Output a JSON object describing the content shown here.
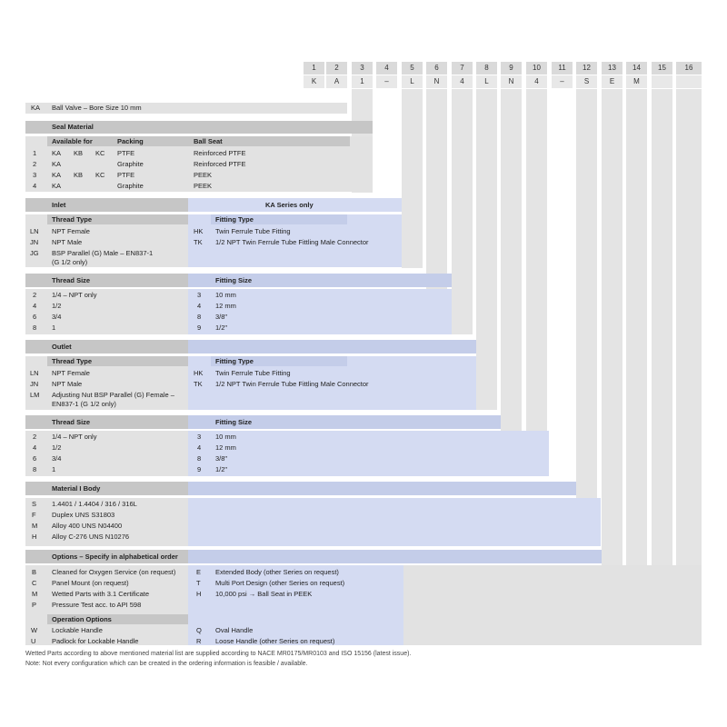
{
  "columns": {
    "numbers": [
      "1",
      "2",
      "3",
      "4",
      "5",
      "6",
      "7",
      "8",
      "9",
      "10",
      "11",
      "12",
      "13",
      "14",
      "15",
      "16"
    ],
    "codes": [
      "K",
      "A",
      "1",
      "–",
      "L",
      "N",
      "4",
      "L",
      "N",
      "4",
      "–",
      "S",
      "E",
      "M",
      "",
      ""
    ]
  },
  "body": {
    "code": "KA",
    "label": "Ball Valve – Bore Size 10 mm"
  },
  "seal": {
    "title": "Seal Material",
    "headers": {
      "available_for": "Available for",
      "packing": "Packing",
      "ball_seat": "Ball Seat"
    },
    "rows": [
      {
        "code": "1",
        "a": "KA",
        "b": "KB",
        "c": "KC",
        "packing": "PTFE",
        "seat": "Reinforced PTFE"
      },
      {
        "code": "2",
        "a": "KA",
        "b": "",
        "c": "",
        "packing": "Graphite",
        "seat": "Reinforced PTFE"
      },
      {
        "code": "3",
        "a": "KA",
        "b": "KB",
        "c": "KC",
        "packing": "PTFE",
        "seat": "PEEK"
      },
      {
        "code": "4",
        "a": "KA",
        "b": "",
        "c": "",
        "packing": "Graphite",
        "seat": "PEEK"
      }
    ]
  },
  "inlet": {
    "title": "Inlet",
    "ka_only": "KA Series only",
    "thread_type": "Thread Type",
    "fitting_type": "Fitting Type",
    "types": [
      {
        "code": "LN",
        "label": "NPT Female"
      },
      {
        "code": "JN",
        "label": "NPT Male"
      },
      {
        "code": "JG",
        "label": "BSP Parallel (G) Male – EN837-1",
        "label2": "(G 1/2 only)"
      }
    ],
    "fittings": [
      {
        "code": "HK",
        "label": "Twin Ferrule Tube Fitting"
      },
      {
        "code": "TK",
        "label": "1/2 NPT Twin Ferrule Tube Fittling Male Connector"
      }
    ],
    "thread_size": "Thread Size",
    "fitting_size": "Fitting Size",
    "sizes": [
      {
        "code": "2",
        "label": "1/4 – NPT only"
      },
      {
        "code": "4",
        "label": "1/2"
      },
      {
        "code": "6",
        "label": "3/4"
      },
      {
        "code": "8",
        "label": "1"
      }
    ],
    "fsizes": [
      {
        "code": "3",
        "label": "10 mm"
      },
      {
        "code": "4",
        "label": "12 mm"
      },
      {
        "code": "8",
        "label": "3/8\""
      },
      {
        "code": "9",
        "label": "1/2\""
      }
    ]
  },
  "outlet": {
    "title": "Outlet",
    "thread_type": "Thread Type",
    "fitting_type": "Fitting Type",
    "types": [
      {
        "code": "LN",
        "label": "NPT Female"
      },
      {
        "code": "JN",
        "label": "NPT Male"
      },
      {
        "code": "LM",
        "label": "Adjusting Nut BSP Parallel (G) Female –",
        "label2": "EN837-1 (G 1/2 only)"
      }
    ],
    "fittings": [
      {
        "code": "HK",
        "label": "Twin Ferrule Tube Fitting"
      },
      {
        "code": "TK",
        "label": "1/2 NPT Twin Ferrule Tube Fittling Male Connector"
      }
    ],
    "thread_size": "Thread Size",
    "fitting_size": "Fitting Size",
    "sizes": [
      {
        "code": "2",
        "label": "1/4 – NPT only"
      },
      {
        "code": "4",
        "label": "1/2"
      },
      {
        "code": "6",
        "label": "3/4"
      },
      {
        "code": "8",
        "label": "1"
      }
    ],
    "fsizes": [
      {
        "code": "3",
        "label": "10 mm"
      },
      {
        "code": "4",
        "label": "12 mm"
      },
      {
        "code": "8",
        "label": "3/8\""
      },
      {
        "code": "9",
        "label": "1/2\""
      }
    ]
  },
  "material": {
    "title": "Material I Body",
    "rows": [
      {
        "code": "S",
        "label": "1.4401 / 1.4404 / 316 / 316L"
      },
      {
        "code": "F",
        "label": "Duplex UNS S31803"
      },
      {
        "code": "M",
        "label": "Alloy 400 UNS N04400"
      },
      {
        "code": "H",
        "label": "Alloy C-276 UNS N10276"
      }
    ]
  },
  "options": {
    "title": "Options – Specify in alphabetical order",
    "left": [
      {
        "code": "B",
        "label": "Cleaned for Oxygen Service (on request)"
      },
      {
        "code": "C",
        "label": "Panel Mount (on request)"
      },
      {
        "code": "M",
        "label": "Wetted Parts with 3.1 Certificate"
      },
      {
        "code": "P",
        "label": "Pressure Test acc. to API 598"
      }
    ],
    "right": [
      {
        "code": "E",
        "label": "Extended Body (other Series on request)"
      },
      {
        "code": "T",
        "label": "Multi Port Design (other Series on request)"
      },
      {
        "code": "H",
        "label": "10,000 psi → Ball Seat in PEEK"
      }
    ],
    "operation_title": "Operation Options",
    "op_left": [
      {
        "code": "W",
        "label": "Lockable Handle"
      },
      {
        "code": "U",
        "label": "Padlock for Lockable Handle"
      }
    ],
    "op_right": [
      {
        "code": "Q",
        "label": "Oval Handle"
      },
      {
        "code": "R",
        "label": "Loose Handle (other Series on request)"
      }
    ]
  },
  "footnotes": {
    "line1": "Wetted Parts according to above mentioned material list are supplied according to NACE MR0175/MR0103 and ISO 15156 (latest issue).",
    "line2": "Note: Not every configuration which can be created in the ordering information is feasible / available."
  }
}
